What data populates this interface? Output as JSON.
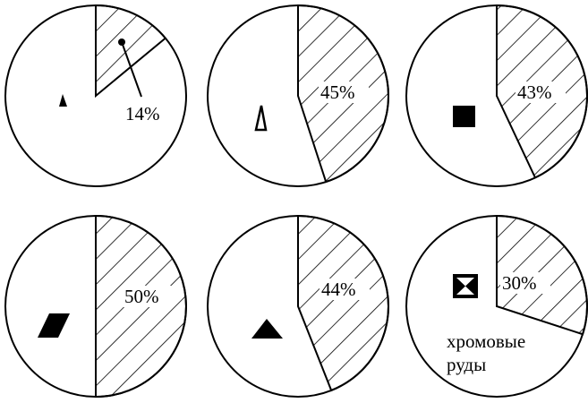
{
  "chart_data": [
    {
      "type": "pie",
      "values": [
        14,
        86
      ],
      "labels": [
        "14%",
        ""
      ],
      "marker": "small-filled-triangle-icon",
      "colors": {
        "stroke": "#000000",
        "fill": "#ffffff"
      }
    },
    {
      "type": "pie",
      "values": [
        45,
        55
      ],
      "labels": [
        "45%",
        ""
      ],
      "marker": "outline-triangle-icon",
      "colors": {
        "stroke": "#000000",
        "fill": "#ffffff"
      }
    },
    {
      "type": "pie",
      "values": [
        43,
        57
      ],
      "labels": [
        "43%",
        ""
      ],
      "marker": "filled-square-icon",
      "colors": {
        "stroke": "#000000",
        "fill": "#ffffff"
      }
    },
    {
      "type": "pie",
      "values": [
        50,
        50
      ],
      "labels": [
        "50%",
        ""
      ],
      "marker": "filled-parallelogram-icon",
      "colors": {
        "stroke": "#000000",
        "fill": "#ffffff"
      }
    },
    {
      "type": "pie",
      "values": [
        44,
        56
      ],
      "labels": [
        "44%",
        ""
      ],
      "marker": "filled-triangle-icon",
      "colors": {
        "stroke": "#000000",
        "fill": "#ffffff"
      }
    },
    {
      "type": "pie",
      "values": [
        30,
        70
      ],
      "labels": [
        "30%",
        ""
      ],
      "marker": "hourglass-square-icon",
      "caption": [
        "хромовые",
        "руды"
      ],
      "colors": {
        "stroke": "#000000",
        "fill": "#ffffff"
      }
    }
  ]
}
